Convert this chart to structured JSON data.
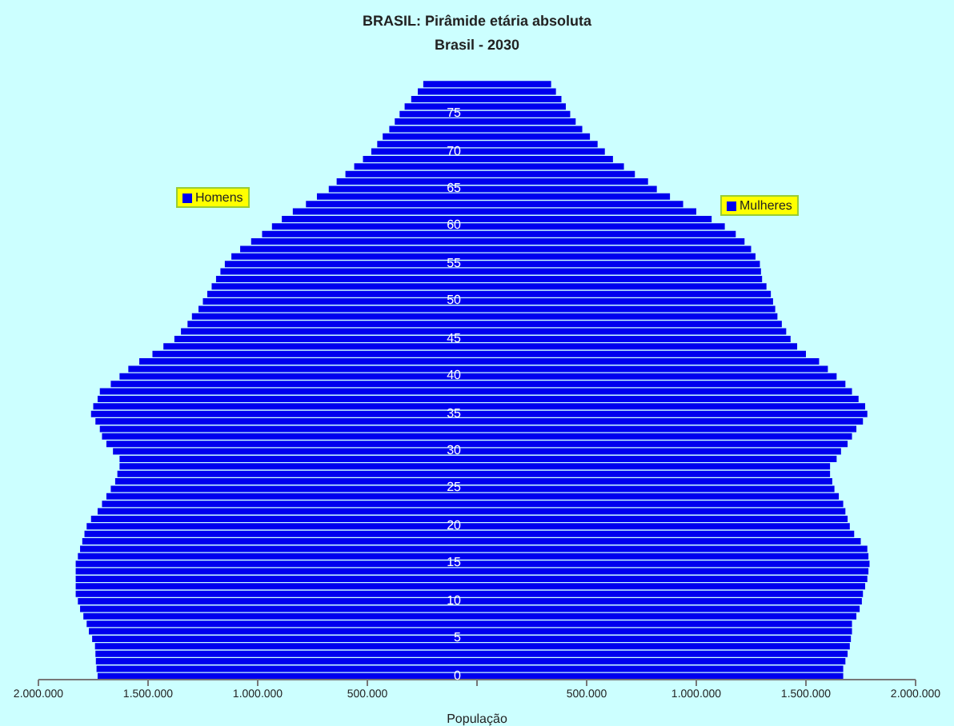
{
  "chart_data": {
    "type": "bar",
    "orientation": "horizontal",
    "stacked": true,
    "title": "BRASIL: Pirâmide etária absoluta",
    "subtitle": "Brasil - 2030",
    "xlabel": "População",
    "categories": [
      null,
      null,
      null,
      null,
      "75",
      null,
      null,
      null,
      null,
      "70",
      null,
      null,
      null,
      null,
      "65",
      null,
      null,
      null,
      null,
      "60",
      null,
      null,
      null,
      null,
      "55",
      null,
      null,
      null,
      null,
      "50",
      null,
      null,
      null,
      null,
      "45",
      null,
      null,
      null,
      null,
      "40",
      null,
      null,
      null,
      null,
      "35",
      null,
      null,
      null,
      null,
      "30",
      null,
      null,
      null,
      null,
      "25",
      null,
      null,
      null,
      null,
      "20",
      null,
      null,
      null,
      null,
      "15",
      null,
      null,
      null,
      null,
      "10",
      null,
      null,
      null,
      null,
      "5",
      null,
      null,
      null,
      null,
      "0"
    ],
    "series": [
      {
        "name": "Homens",
        "color": "#0000ee",
        "values": [
          -245000,
          -270000,
          -300000,
          -330000,
          -353000,
          -375000,
          -400000,
          -430000,
          -455000,
          -482000,
          -520000,
          -560000,
          -600000,
          -640000,
          -676000,
          -730000,
          -780000,
          -840000,
          -890000,
          -935000,
          -980000,
          -1030000,
          -1080000,
          -1120000,
          -1150000,
          -1170000,
          -1190000,
          -1210000,
          -1230000,
          -1250000,
          -1270000,
          -1300000,
          -1320000,
          -1350000,
          -1380000,
          -1430000,
          -1480000,
          -1540000,
          -1590000,
          -1630000,
          -1670000,
          -1720000,
          -1730000,
          -1750000,
          -1760000,
          -1740000,
          -1720000,
          -1710000,
          -1690000,
          -1660000,
          -1630000,
          -1630000,
          -1640000,
          -1650000,
          -1670000,
          -1690000,
          -1710000,
          -1730000,
          -1760000,
          -1780000,
          -1790000,
          -1800000,
          -1810000,
          -1820000,
          -1830000,
          -1830000,
          -1830000,
          -1830000,
          -1830000,
          -1820000,
          -1810000,
          -1795000,
          -1780000,
          -1770000,
          -1755000,
          -1742000,
          -1740000,
          -1738000,
          -1735000,
          -1730000
        ]
      },
      {
        "name": "Mulheres",
        "color": "#0000ee",
        "values": [
          338000,
          360000,
          385000,
          405000,
          425000,
          450000,
          480000,
          515000,
          550000,
          583000,
          620000,
          670000,
          720000,
          780000,
          820000,
          880000,
          940000,
          1000000,
          1070000,
          1130000,
          1180000,
          1220000,
          1250000,
          1270000,
          1290000,
          1295000,
          1300000,
          1320000,
          1340000,
          1350000,
          1360000,
          1370000,
          1390000,
          1410000,
          1430000,
          1460000,
          1500000,
          1560000,
          1600000,
          1640000,
          1680000,
          1710000,
          1740000,
          1770000,
          1780000,
          1760000,
          1730000,
          1710000,
          1690000,
          1660000,
          1640000,
          1610000,
          1610000,
          1620000,
          1630000,
          1650000,
          1670000,
          1680000,
          1690000,
          1700000,
          1720000,
          1750000,
          1780000,
          1785000,
          1790000,
          1785000,
          1780000,
          1770000,
          1760000,
          1755000,
          1745000,
          1730000,
          1710000,
          1710000,
          1705000,
          1700000,
          1690000,
          1680000,
          1670000,
          1670000
        ]
      }
    ],
    "xlim": [
      -2000000,
      2000000
    ],
    "xticks": [
      {
        "value": -2000000,
        "label": "2.000.000"
      },
      {
        "value": -1500000,
        "label": "1.500.000"
      },
      {
        "value": -1000000,
        "label": "1.000.000"
      },
      {
        "value": -500000,
        "label": "500.000"
      },
      {
        "value": 0,
        "label": null
      },
      {
        "value": 500000,
        "label": "500.000"
      },
      {
        "value": 1000000,
        "label": "1.000.000"
      },
      {
        "value": 1500000,
        "label": "1.500.000"
      },
      {
        "value": 2000000,
        "label": "2.000.000"
      }
    ],
    "grid": false,
    "legend": "top"
  }
}
